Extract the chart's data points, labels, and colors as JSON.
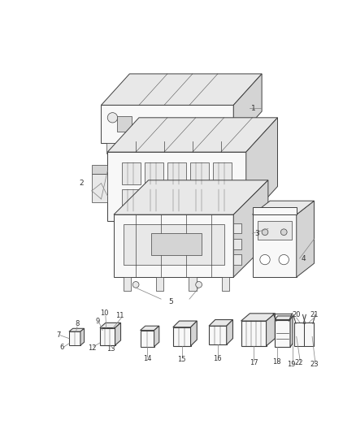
{
  "bg_color": "#ffffff",
  "line_color": "#404040",
  "line_color2": "#606060",
  "figsize": [
    4.38,
    5.33
  ],
  "dpi": 100,
  "label_color": "#333333",
  "label_fs": 6.5,
  "leader_color": "#888888",
  "leader_lw": 0.55,
  "part_lw": 0.7,
  "part_lw2": 0.5,
  "face_light": "#f8f8f8",
  "face_mid": "#e8e8e8",
  "face_dark": "#d4d4d4",
  "face_darker": "#c0c0c0"
}
